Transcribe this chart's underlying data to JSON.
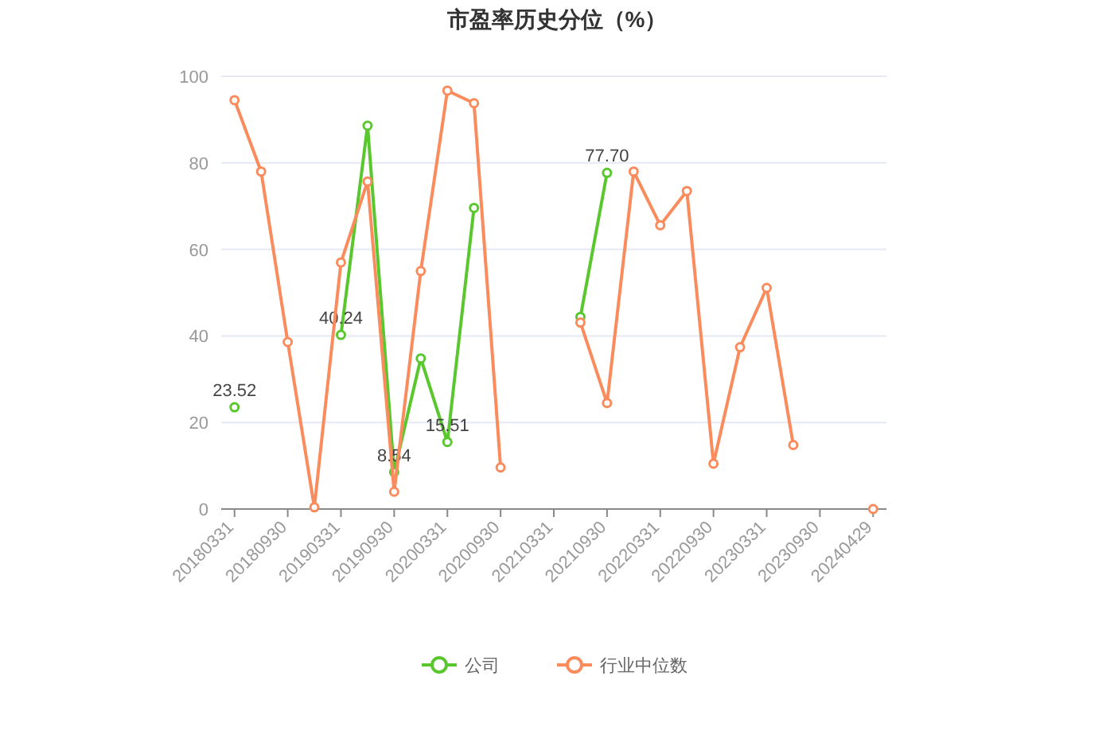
{
  "chart_data": {
    "type": "line",
    "title": "市盈率历史分位（%）",
    "categories": [
      "20180331",
      null,
      "20180930",
      null,
      "20190331",
      null,
      "20190930",
      null,
      "20200331",
      null,
      "20200930",
      null,
      "20210331",
      null,
      "20210930",
      null,
      "20220331",
      null,
      "20220930",
      null,
      "20230331",
      null,
      "20230930",
      null,
      "20240429"
    ],
    "series": [
      {
        "name": "公司",
        "color": "#5ac72f",
        "values": [
          23.52,
          null,
          null,
          null,
          40.24,
          88.6,
          8.54,
          34.8,
          15.51,
          69.6,
          null,
          null,
          null,
          44.4,
          77.7,
          null,
          null,
          null,
          null,
          null,
          null,
          null,
          null,
          null,
          null
        ],
        "value_labels": [
          "23.52",
          null,
          null,
          null,
          "40.24",
          null,
          "8.54",
          null,
          "15.51",
          null,
          null,
          null,
          null,
          null,
          "77.70",
          null,
          null,
          null,
          null,
          null,
          null,
          null,
          null,
          null,
          null
        ]
      },
      {
        "name": "行业中位数",
        "color": "#f98b5c",
        "values": [
          94.5,
          78,
          38.6,
          0.4,
          57,
          75.7,
          4,
          55,
          96.7,
          93.8,
          9.6,
          null,
          null,
          43.1,
          24.5,
          78,
          65.6,
          73.5,
          10.5,
          37.4,
          51.1,
          14.8,
          null,
          null,
          0
        ]
      }
    ],
    "ylim": [
      0,
      100
    ],
    "yticks": [
      0,
      20,
      40,
      60,
      80,
      100
    ],
    "grid": "y",
    "legend": "bottom",
    "marker": "circle",
    "line_style": "solid"
  }
}
